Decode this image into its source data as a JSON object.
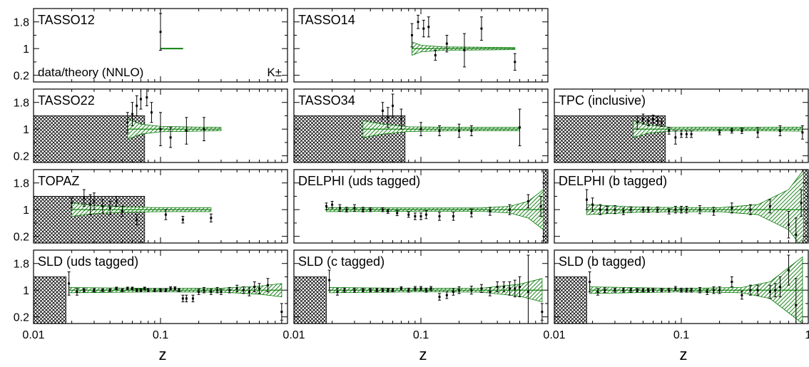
{
  "figure": {
    "xlabel": "z",
    "x_ticks": [
      "0.01",
      "0.1",
      "1"
    ],
    "y_ticks": [
      "1.8",
      "1",
      "0.2"
    ],
    "ratio_label": "data/theory (NNLO)",
    "hadron_label": "K±",
    "colors": {
      "band": "#2e8b2e",
      "band_line": "#007a00",
      "excluded": "#000000",
      "points": "#000000"
    }
  },
  "chart_data": [
    {
      "type": "scatter",
      "title": "TASSO12",
      "xscale": "log",
      "xlim": [
        0.01,
        1
      ],
      "ylim": [
        0,
        2.2
      ],
      "excluded": [],
      "points": [
        [
          0.1,
          1.5,
          0.55
        ]
      ],
      "band": [
        [
          0.1,
          0.01
        ],
        [
          0.15,
          0.01
        ]
      ]
    },
    {
      "type": "scatter",
      "title": "TASSO14",
      "xscale": "log",
      "xlim": [
        0.01,
        1
      ],
      "ylim": [
        0,
        2.2
      ],
      "excluded": [],
      "points": [
        [
          0.085,
          1.4,
          0.35
        ],
        [
          0.095,
          1.8,
          0.2
        ],
        [
          0.105,
          1.6,
          0.25
        ],
        [
          0.115,
          1.65,
          0.3
        ],
        [
          0.13,
          0.8,
          0.15
        ],
        [
          0.16,
          1.15,
          0.25
        ],
        [
          0.22,
          0.95,
          0.5
        ],
        [
          0.3,
          1.6,
          0.35
        ],
        [
          0.55,
          0.6,
          0.25
        ]
      ],
      "band": [
        [
          0.085,
          0.2
        ],
        [
          0.1,
          0.1
        ],
        [
          0.15,
          0.05
        ],
        [
          0.3,
          0.04
        ],
        [
          0.55,
          0.03
        ]
      ]
    },
    {
      "type": "scatter",
      "title": "",
      "xscale": "log",
      "xlim": [
        0.01,
        1
      ],
      "ylim": [
        0,
        2.2
      ],
      "empty": true,
      "excluded": [],
      "points": [],
      "band": []
    },
    {
      "type": "scatter",
      "title": "TASSO22",
      "xscale": "log",
      "xlim": [
        0.01,
        1
      ],
      "ylim": [
        0,
        2.2
      ],
      "excluded": [
        [
          0.01,
          0.075
        ]
      ],
      "points": [
        [
          0.055,
          1.2,
          0.3
        ],
        [
          0.06,
          1.45,
          0.35
        ],
        [
          0.065,
          1.7,
          0.3
        ],
        [
          0.07,
          1.9,
          0.3
        ],
        [
          0.078,
          1.95,
          0.25
        ],
        [
          0.085,
          1.5,
          0.3
        ],
        [
          0.1,
          1.0,
          0.5
        ],
        [
          0.12,
          0.75,
          0.3
        ],
        [
          0.16,
          0.95,
          0.4
        ],
        [
          0.22,
          1.0,
          0.35
        ]
      ],
      "band": [
        [
          0.055,
          0.3
        ],
        [
          0.07,
          0.15
        ],
        [
          0.1,
          0.08
        ],
        [
          0.2,
          0.06
        ],
        [
          0.3,
          0.05
        ]
      ]
    },
    {
      "type": "scatter",
      "title": "TASSO34",
      "xscale": "log",
      "xlim": [
        0.01,
        1
      ],
      "ylim": [
        0,
        2.2
      ],
      "excluded": [
        [
          0.01,
          0.075
        ]
      ],
      "points": [
        [
          0.05,
          1.55,
          0.25
        ],
        [
          0.055,
          1.35,
          0.3
        ],
        [
          0.06,
          1.7,
          0.35
        ],
        [
          0.07,
          1.3,
          0.3
        ],
        [
          0.1,
          1.0,
          0.2
        ],
        [
          0.14,
          0.95,
          0.15
        ],
        [
          0.2,
          0.95,
          0.2
        ],
        [
          0.25,
          0.95,
          0.15
        ],
        [
          0.6,
          1.05,
          0.55
        ]
      ],
      "band": [
        [
          0.035,
          0.25
        ],
        [
          0.05,
          0.15
        ],
        [
          0.08,
          0.07
        ],
        [
          0.2,
          0.05
        ],
        [
          0.6,
          0.05
        ]
      ]
    },
    {
      "type": "scatter",
      "title": "TPC (inclusive)",
      "xscale": "log",
      "xlim": [
        0.01,
        1
      ],
      "ylim": [
        0,
        2.2
      ],
      "excluded": [
        [
          0.01,
          0.075
        ]
      ],
      "points": [
        [
          0.045,
          1.2,
          0.2
        ],
        [
          0.05,
          1.3,
          0.15
        ],
        [
          0.055,
          1.25,
          0.15
        ],
        [
          0.06,
          1.3,
          0.12
        ],
        [
          0.065,
          1.25,
          0.12
        ],
        [
          0.07,
          1.2,
          0.12
        ],
        [
          0.08,
          0.95,
          0.1
        ],
        [
          0.09,
          0.75,
          0.2
        ],
        [
          0.1,
          0.85,
          0.1
        ],
        [
          0.11,
          0.85,
          0.1
        ],
        [
          0.12,
          0.85,
          0.1
        ],
        [
          0.2,
          0.9,
          0.07
        ],
        [
          0.25,
          0.95,
          0.07
        ],
        [
          0.3,
          0.95,
          0.08
        ],
        [
          0.4,
          0.9,
          0.15
        ],
        [
          0.6,
          0.95,
          0.15
        ],
        [
          0.9,
          0.9,
          0.2
        ]
      ],
      "band": [
        [
          0.042,
          0.25
        ],
        [
          0.055,
          0.12
        ],
        [
          0.08,
          0.06
        ],
        [
          0.3,
          0.05
        ],
        [
          0.9,
          0.06
        ]
      ]
    },
    {
      "type": "scatter",
      "title": "TOPAZ",
      "xscale": "log",
      "xlim": [
        0.01,
        1
      ],
      "ylim": [
        0,
        2.2
      ],
      "excluded": [
        [
          0.01,
          0.075
        ]
      ],
      "points": [
        [
          0.02,
          1.2,
          0.15
        ],
        [
          0.025,
          1.35,
          0.25
        ],
        [
          0.028,
          1.15,
          0.3
        ],
        [
          0.03,
          1.25,
          0.25
        ],
        [
          0.035,
          1.1,
          0.2
        ],
        [
          0.04,
          1.05,
          0.2
        ],
        [
          0.045,
          1.25,
          0.15
        ],
        [
          0.05,
          0.95,
          0.15
        ],
        [
          0.065,
          0.7,
          0.15
        ],
        [
          0.11,
          0.85,
          0.15
        ],
        [
          0.15,
          0.7,
          0.1
        ],
        [
          0.25,
          0.75,
          0.12
        ]
      ],
      "band": [
        [
          0.02,
          0.2
        ],
        [
          0.03,
          0.12
        ],
        [
          0.05,
          0.08
        ],
        [
          0.1,
          0.06
        ],
        [
          0.25,
          0.06
        ]
      ]
    },
    {
      "type": "scatter",
      "title": "DELPHI (uds tagged)",
      "xscale": "log",
      "xlim": [
        0.01,
        1
      ],
      "ylim": [
        0,
        2.2
      ],
      "excluded": [
        [
          0.92,
          1.0
        ]
      ],
      "points": [
        [
          0.018,
          1.1,
          0.1
        ],
        [
          0.02,
          1.15,
          0.1
        ],
        [
          0.023,
          1.05,
          0.1
        ],
        [
          0.026,
          1.0,
          0.07
        ],
        [
          0.03,
          1.05,
          0.1
        ],
        [
          0.035,
          1.0,
          0.07
        ],
        [
          0.04,
          1.0,
          0.06
        ],
        [
          0.05,
          1.0,
          0.06
        ],
        [
          0.055,
          0.95,
          0.06
        ],
        [
          0.065,
          0.9,
          0.08
        ],
        [
          0.08,
          0.85,
          0.08
        ],
        [
          0.09,
          0.8,
          0.1
        ],
        [
          0.1,
          0.8,
          0.1
        ],
        [
          0.11,
          0.85,
          0.12
        ],
        [
          0.14,
          0.8,
          0.12
        ],
        [
          0.18,
          0.8,
          0.12
        ],
        [
          0.25,
          0.9,
          0.12
        ],
        [
          0.35,
          0.95,
          0.12
        ],
        [
          0.5,
          1.0,
          0.15
        ],
        [
          0.7,
          1.25,
          0.2
        ],
        [
          0.88,
          1.1,
          0.3
        ]
      ],
      "band": [
        [
          0.018,
          0.06
        ],
        [
          0.1,
          0.05
        ],
        [
          0.3,
          0.05
        ],
        [
          0.5,
          0.1
        ],
        [
          0.7,
          0.25
        ],
        [
          0.92,
          0.6
        ]
      ]
    },
    {
      "type": "scatter",
      "title": "DELPHI (b tagged)",
      "xscale": "log",
      "xlim": [
        0.01,
        1
      ],
      "ylim": [
        0,
        2.2
      ],
      "excluded": [
        [
          0.92,
          1.0
        ]
      ],
      "points": [
        [
          0.018,
          1.3,
          0.3
        ],
        [
          0.02,
          1.15,
          0.2
        ],
        [
          0.023,
          1.0,
          0.15
        ],
        [
          0.026,
          1.0,
          0.1
        ],
        [
          0.03,
          1.0,
          0.12
        ],
        [
          0.035,
          0.95,
          0.1
        ],
        [
          0.04,
          1.0,
          0.08
        ],
        [
          0.05,
          1.0,
          0.08
        ],
        [
          0.055,
          1.0,
          0.08
        ],
        [
          0.065,
          1.0,
          0.08
        ],
        [
          0.08,
          0.95,
          0.08
        ],
        [
          0.09,
          1.0,
          0.1
        ],
        [
          0.1,
          1.0,
          0.1
        ],
        [
          0.11,
          1.0,
          0.1
        ],
        [
          0.14,
          1.0,
          0.12
        ],
        [
          0.18,
          0.95,
          0.12
        ],
        [
          0.25,
          1.05,
          0.15
        ],
        [
          0.35,
          1.0,
          0.15
        ],
        [
          0.5,
          1.1,
          0.2
        ],
        [
          0.7,
          0.55,
          0.4
        ],
        [
          0.8,
          0.25,
          0.5
        ],
        [
          0.88,
          1.2,
          0.4
        ]
      ],
      "band": [
        [
          0.018,
          0.15
        ],
        [
          0.05,
          0.07
        ],
        [
          0.2,
          0.06
        ],
        [
          0.4,
          0.15
        ],
        [
          0.7,
          0.6
        ],
        [
          0.92,
          1.2
        ]
      ]
    },
    {
      "type": "scatter",
      "title": "SLD (uds tagged)",
      "xscale": "log",
      "xlim": [
        0.01,
        1
      ],
      "ylim": [
        0,
        2.2
      ],
      "excluded": [
        [
          0.01,
          0.018
        ]
      ],
      "points": [
        [
          0.019,
          1.2,
          0.35
        ],
        [
          0.022,
          0.95,
          0.1
        ],
        [
          0.025,
          1.0,
          0.05
        ],
        [
          0.03,
          1.0,
          0.05
        ],
        [
          0.035,
          1.0,
          0.04
        ],
        [
          0.04,
          1.0,
          0.04
        ],
        [
          0.045,
          1.05,
          0.04
        ],
        [
          0.05,
          1.0,
          0.04
        ],
        [
          0.055,
          1.05,
          0.04
        ],
        [
          0.06,
          1.05,
          0.04
        ],
        [
          0.065,
          1.0,
          0.04
        ],
        [
          0.07,
          1.0,
          0.04
        ],
        [
          0.075,
          1.05,
          0.04
        ],
        [
          0.08,
          1.0,
          0.05
        ],
        [
          0.09,
          1.0,
          0.05
        ],
        [
          0.1,
          1.0,
          0.05
        ],
        [
          0.11,
          1.0,
          0.05
        ],
        [
          0.12,
          1.05,
          0.05
        ],
        [
          0.13,
          1.05,
          0.05
        ],
        [
          0.14,
          1.0,
          0.05
        ],
        [
          0.15,
          0.75,
          0.1
        ],
        [
          0.16,
          0.75,
          0.1
        ],
        [
          0.18,
          0.75,
          0.1
        ],
        [
          0.2,
          0.95,
          0.08
        ],
        [
          0.22,
          1.0,
          0.08
        ],
        [
          0.25,
          0.95,
          0.08
        ],
        [
          0.28,
          1.0,
          0.08
        ],
        [
          0.3,
          0.95,
          0.08
        ],
        [
          0.35,
          1.0,
          0.08
        ],
        [
          0.4,
          1.05,
          0.1
        ],
        [
          0.45,
          1.0,
          0.1
        ],
        [
          0.5,
          0.95,
          0.12
        ],
        [
          0.55,
          1.1,
          0.15
        ],
        [
          0.6,
          1.05,
          0.15
        ],
        [
          0.7,
          1.15,
          0.2
        ],
        [
          0.9,
          0.35,
          0.25
        ]
      ],
      "band": [
        [
          0.019,
          0.08
        ],
        [
          0.1,
          0.05
        ],
        [
          0.3,
          0.06
        ],
        [
          0.6,
          0.12
        ],
        [
          0.9,
          0.2
        ]
      ]
    },
    {
      "type": "scatter",
      "title": "SLD (c tagged)",
      "xscale": "log",
      "xlim": [
        0.01,
        1
      ],
      "ylim": [
        0,
        2.2
      ],
      "excluded": [
        [
          0.01,
          0.018
        ]
      ],
      "points": [
        [
          0.019,
          1.3,
          0.3
        ],
        [
          0.022,
          0.95,
          0.1
        ],
        [
          0.025,
          1.0,
          0.06
        ],
        [
          0.03,
          1.0,
          0.06
        ],
        [
          0.035,
          1.0,
          0.05
        ],
        [
          0.04,
          1.0,
          0.05
        ],
        [
          0.045,
          1.0,
          0.05
        ],
        [
          0.05,
          1.0,
          0.05
        ],
        [
          0.055,
          1.0,
          0.05
        ],
        [
          0.06,
          1.0,
          0.05
        ],
        [
          0.07,
          1.05,
          0.05
        ],
        [
          0.08,
          1.0,
          0.06
        ],
        [
          0.09,
          1.05,
          0.06
        ],
        [
          0.1,
          1.05,
          0.06
        ],
        [
          0.11,
          1.0,
          0.06
        ],
        [
          0.12,
          1.05,
          0.06
        ],
        [
          0.14,
          0.8,
          0.1
        ],
        [
          0.16,
          0.85,
          0.1
        ],
        [
          0.18,
          0.95,
          0.1
        ],
        [
          0.2,
          1.0,
          0.1
        ],
        [
          0.25,
          1.0,
          0.12
        ],
        [
          0.3,
          1.05,
          0.12
        ],
        [
          0.35,
          0.95,
          0.12
        ],
        [
          0.4,
          1.1,
          0.15
        ],
        [
          0.45,
          1.1,
          0.15
        ],
        [
          0.5,
          1.05,
          0.2
        ],
        [
          0.55,
          1.05,
          0.25
        ],
        [
          0.6,
          1.1,
          0.3
        ],
        [
          0.7,
          0.95,
          1.1
        ],
        [
          0.9,
          0.35,
          0.25
        ]
      ],
      "band": [
        [
          0.019,
          0.08
        ],
        [
          0.1,
          0.05
        ],
        [
          0.3,
          0.06
        ],
        [
          0.6,
          0.18
        ],
        [
          0.9,
          0.35
        ]
      ]
    },
    {
      "type": "scatter",
      "title": "SLD (b tagged)",
      "xscale": "log",
      "xlim": [
        0.01,
        1
      ],
      "ylim": [
        0,
        2.2
      ],
      "excluded": [
        [
          0.01,
          0.018
        ]
      ],
      "points": [
        [
          0.019,
          1.25,
          0.3
        ],
        [
          0.022,
          0.95,
          0.1
        ],
        [
          0.025,
          1.0,
          0.07
        ],
        [
          0.03,
          1.0,
          0.06
        ],
        [
          0.035,
          1.0,
          0.06
        ],
        [
          0.04,
          1.0,
          0.06
        ],
        [
          0.045,
          1.0,
          0.05
        ],
        [
          0.05,
          1.0,
          0.05
        ],
        [
          0.055,
          1.0,
          0.05
        ],
        [
          0.06,
          1.0,
          0.05
        ],
        [
          0.07,
          1.0,
          0.05
        ],
        [
          0.08,
          1.0,
          0.06
        ],
        [
          0.09,
          1.05,
          0.06
        ],
        [
          0.1,
          1.0,
          0.06
        ],
        [
          0.11,
          1.0,
          0.06
        ],
        [
          0.12,
          1.0,
          0.06
        ],
        [
          0.14,
          1.0,
          0.08
        ],
        [
          0.16,
          0.95,
          0.08
        ],
        [
          0.18,
          1.0,
          0.1
        ],
        [
          0.2,
          1.0,
          0.1
        ],
        [
          0.25,
          1.25,
          0.15
        ],
        [
          0.3,
          0.85,
          0.12
        ],
        [
          0.35,
          1.0,
          0.15
        ],
        [
          0.4,
          1.0,
          0.15
        ],
        [
          0.5,
          0.95,
          0.2
        ],
        [
          0.55,
          1.0,
          0.2
        ],
        [
          0.6,
          1.1,
          0.3
        ],
        [
          0.7,
          1.6,
          0.45
        ],
        [
          0.8,
          0.55,
          0.8
        ]
      ],
      "band": [
        [
          0.019,
          0.1
        ],
        [
          0.1,
          0.05
        ],
        [
          0.3,
          0.08
        ],
        [
          0.5,
          0.25
        ],
        [
          0.9,
          1.0
        ]
      ]
    }
  ]
}
